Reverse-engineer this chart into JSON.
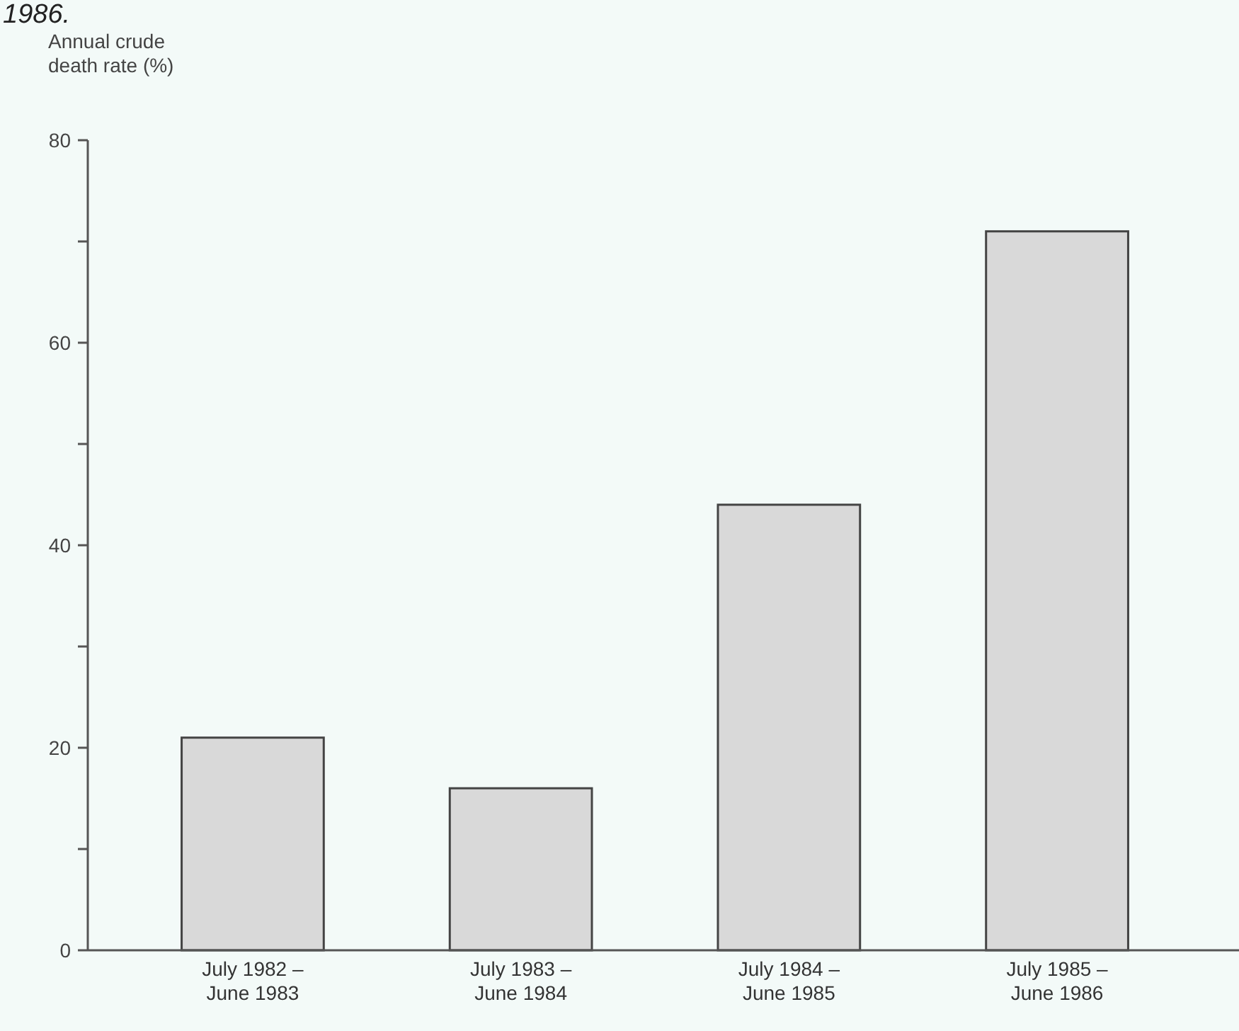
{
  "chart_data": {
    "type": "bar",
    "ylabel": "Annual crude\ndeath rate (%)",
    "annotations": [
      "1986."
    ],
    "categories": [
      "July 1982 –\nJune 1983",
      "July 1983 –\nJune 1984",
      "July 1984 –\nJune 1985",
      "July 1985 –\nJune 1986"
    ],
    "values": [
      21,
      16,
      44,
      71
    ],
    "color": "#d9d9d9",
    "ylim": [
      0,
      80
    ],
    "yticks": [
      0,
      {
        "value": 10,
        "label": null
      },
      20,
      {
        "value": 30,
        "label": null
      },
      40,
      {
        "value": 50,
        "label": null
      },
      60,
      {
        "value": 70,
        "label": null
      },
      80
    ],
    "grid": false
  }
}
